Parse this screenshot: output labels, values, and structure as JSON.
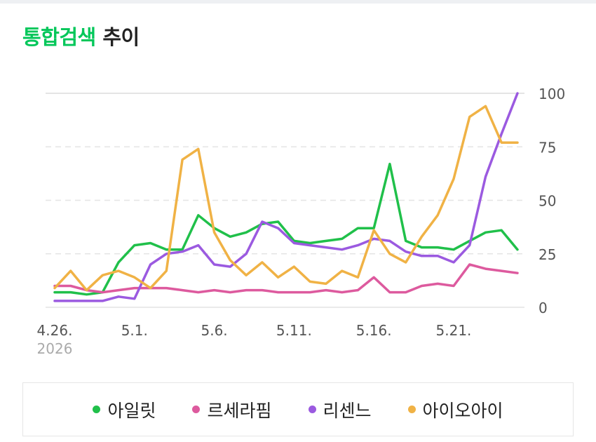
{
  "title": {
    "accent": "통합검색",
    "rest": "추이"
  },
  "chart_data": {
    "type": "line",
    "x": [
      "4.26.",
      "4.27.",
      "4.28.",
      "4.29.",
      "4.30.",
      "5.1.",
      "5.2.",
      "5.3.",
      "5.4.",
      "5.5.",
      "5.6.",
      "5.7.",
      "5.8.",
      "5.9.",
      "5.10.",
      "5.11.",
      "5.12.",
      "5.13.",
      "5.14.",
      "5.15.",
      "5.16.",
      "5.17.",
      "5.18.",
      "5.19.",
      "5.20.",
      "5.21.",
      "5.22.",
      "5.23.",
      "5.24.",
      "5.25."
    ],
    "xticks": [
      {
        "index": 0,
        "label": "4.26.",
        "sublabel": "2026"
      },
      {
        "index": 5,
        "label": "5.1."
      },
      {
        "index": 10,
        "label": "5.6."
      },
      {
        "index": 15,
        "label": "5.11."
      },
      {
        "index": 20,
        "label": "5.16."
      },
      {
        "index": 25,
        "label": "5.21."
      }
    ],
    "yticks": [
      0,
      25,
      50,
      75,
      100
    ],
    "ylim": [
      0,
      100
    ],
    "series": [
      {
        "name": "아일릿",
        "color": "#20c04a",
        "values": [
          7,
          7,
          6,
          7,
          21,
          29,
          30,
          27,
          27,
          43,
          37,
          33,
          35,
          39,
          40,
          31,
          30,
          31,
          32,
          37,
          37,
          67,
          31,
          28,
          28,
          27,
          31,
          35,
          36,
          27
        ]
      },
      {
        "name": "르세라핌",
        "color": "#dd5a9e",
        "values": [
          10,
          10,
          8,
          7,
          8,
          9,
          9,
          9,
          8,
          7,
          8,
          7,
          8,
          8,
          7,
          7,
          7,
          8,
          7,
          8,
          14,
          7,
          7,
          10,
          11,
          10,
          20,
          18,
          17,
          16
        ]
      },
      {
        "name": "리센느",
        "color": "#9b5ae0",
        "values": [
          3,
          3,
          3,
          3,
          5,
          4,
          20,
          25,
          26,
          29,
          20,
          19,
          25,
          40,
          37,
          30,
          29,
          28,
          27,
          29,
          32,
          31,
          26,
          24,
          24,
          21,
          29,
          61,
          81,
          100
        ]
      },
      {
        "name": "아이오아이",
        "color": "#f0b245",
        "values": [
          9,
          17,
          8,
          15,
          17,
          14,
          9,
          17,
          69,
          74,
          35,
          22,
          15,
          21,
          14,
          19,
          12,
          11,
          17,
          14,
          36,
          25,
          21,
          33,
          43,
          60,
          89,
          94,
          77,
          77
        ]
      }
    ]
  }
}
